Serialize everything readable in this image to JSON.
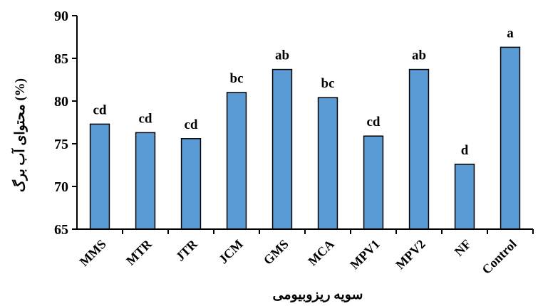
{
  "chart_data": {
    "type": "bar",
    "title": "",
    "xlabel": "سویه ریزوبیومی",
    "ylabel": "محتوای آب برگ (%)",
    "categories": [
      "MMS",
      "MTR",
      "JTR",
      "JCM",
      "GMS",
      "MCA",
      "MPV1",
      "MPV2",
      "NF",
      "Control"
    ],
    "values": [
      77.3,
      76.3,
      75.6,
      81.0,
      83.7,
      80.4,
      75.9,
      83.7,
      72.6,
      86.3
    ],
    "data_labels": [
      "cd",
      "cd",
      "cd",
      "bc",
      "ab",
      "bc",
      "cd",
      "ab",
      "d",
      "a"
    ],
    "ylim": [
      65,
      90
    ],
    "yticks": [
      65,
      70,
      75,
      80,
      85,
      90
    ],
    "grid": false,
    "legend": "none",
    "bar_color": "#5b9bd5",
    "bar_edge_color": "#000000"
  }
}
